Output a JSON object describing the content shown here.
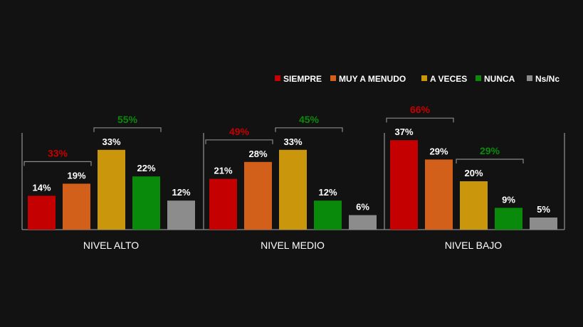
{
  "chart_data": {
    "type": "bar",
    "legend_position": "top-right",
    "series_colors": {
      "SIEMPRE": "#c40000",
      "MUY A MENUDO": "#d2601a",
      "A VECES": "#c9960c",
      "NUNCA": "#0a8a0a",
      "Ns/Nc": "#8c8c8c"
    },
    "categories": [
      "NIVEL ALTO",
      "NIVEL MEDIO",
      "NIVEL BAJO"
    ],
    "series": [
      {
        "name": "SIEMPRE",
        "values": [
          14,
          21,
          37
        ],
        "labels": [
          "14%",
          "21%",
          "37%"
        ]
      },
      {
        "name": "MUY A MENUDO",
        "values": [
          19,
          28,
          29
        ],
        "labels": [
          "19%",
          "28%",
          "29%"
        ]
      },
      {
        "name": "A VECES",
        "values": [
          33,
          33,
          20
        ],
        "labels": [
          "33%",
          "33%",
          "20%"
        ]
      },
      {
        "name": "NUNCA",
        "values": [
          22,
          12,
          9
        ],
        "labels": [
          "22%",
          "12%",
          "9%"
        ]
      },
      {
        "name": "Ns/Nc",
        "values": [
          12,
          6,
          5
        ],
        "labels": [
          "12%",
          "6%",
          "5%"
        ]
      }
    ],
    "ylim": [
      0,
      40
    ],
    "grid": false,
    "annotations": [
      {
        "category": "NIVEL ALTO",
        "from_series": 0,
        "to_series": 1,
        "value": 33,
        "label": "33%",
        "color": "#c40000"
      },
      {
        "category": "NIVEL ALTO",
        "from_series": 2,
        "to_series": 3,
        "value": 55,
        "label": "55%",
        "color": "#0a8a0a"
      },
      {
        "category": "NIVEL MEDIO",
        "from_series": 0,
        "to_series": 1,
        "value": 49,
        "label": "49%",
        "color": "#c40000"
      },
      {
        "category": "NIVEL MEDIO",
        "from_series": 2,
        "to_series": 3,
        "value": 45,
        "label": "45%",
        "color": "#0a8a0a"
      },
      {
        "category": "NIVEL BAJO",
        "from_series": 0,
        "to_series": 1,
        "value": 66,
        "label": "66%",
        "color": "#c40000"
      },
      {
        "category": "NIVEL BAJO",
        "from_series": 2,
        "to_series": 3,
        "value": 29,
        "label": "29%",
        "color": "#0a8a0a"
      }
    ]
  }
}
